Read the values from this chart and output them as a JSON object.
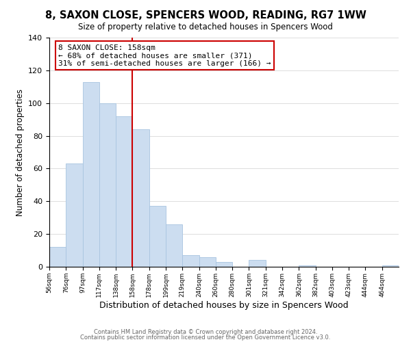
{
  "title": "8, SAXON CLOSE, SPENCERS WOOD, READING, RG7 1WW",
  "subtitle": "Size of property relative to detached houses in Spencers Wood",
  "xlabel": "Distribution of detached houses by size in Spencers Wood",
  "ylabel": "Number of detached properties",
  "bar_labels": [
    "56sqm",
    "76sqm",
    "97sqm",
    "117sqm",
    "138sqm",
    "158sqm",
    "178sqm",
    "199sqm",
    "219sqm",
    "240sqm",
    "260sqm",
    "280sqm",
    "301sqm",
    "321sqm",
    "342sqm",
    "362sqm",
    "382sqm",
    "403sqm",
    "423sqm",
    "444sqm",
    "464sqm"
  ],
  "bar_values": [
    12,
    63,
    113,
    100,
    92,
    84,
    37,
    26,
    7,
    6,
    3,
    0,
    4,
    0,
    0,
    1,
    0,
    0,
    0,
    0,
    1
  ],
  "bar_color": "#ccddf0",
  "bar_edge_color": "#a8c4e0",
  "vline_color": "#cc0000",
  "annotation_title": "8 SAXON CLOSE: 158sqm",
  "annotation_line1": "← 68% of detached houses are smaller (371)",
  "annotation_line2": "31% of semi-detached houses are larger (166) →",
  "annotation_box_color": "#ffffff",
  "annotation_box_edge": "#cc0000",
  "ylim": [
    0,
    140
  ],
  "yticks": [
    0,
    20,
    40,
    60,
    80,
    100,
    120,
    140
  ],
  "footer1": "Contains HM Land Registry data © Crown copyright and database right 2024.",
  "footer2": "Contains public sector information licensed under the Open Government Licence v3.0."
}
